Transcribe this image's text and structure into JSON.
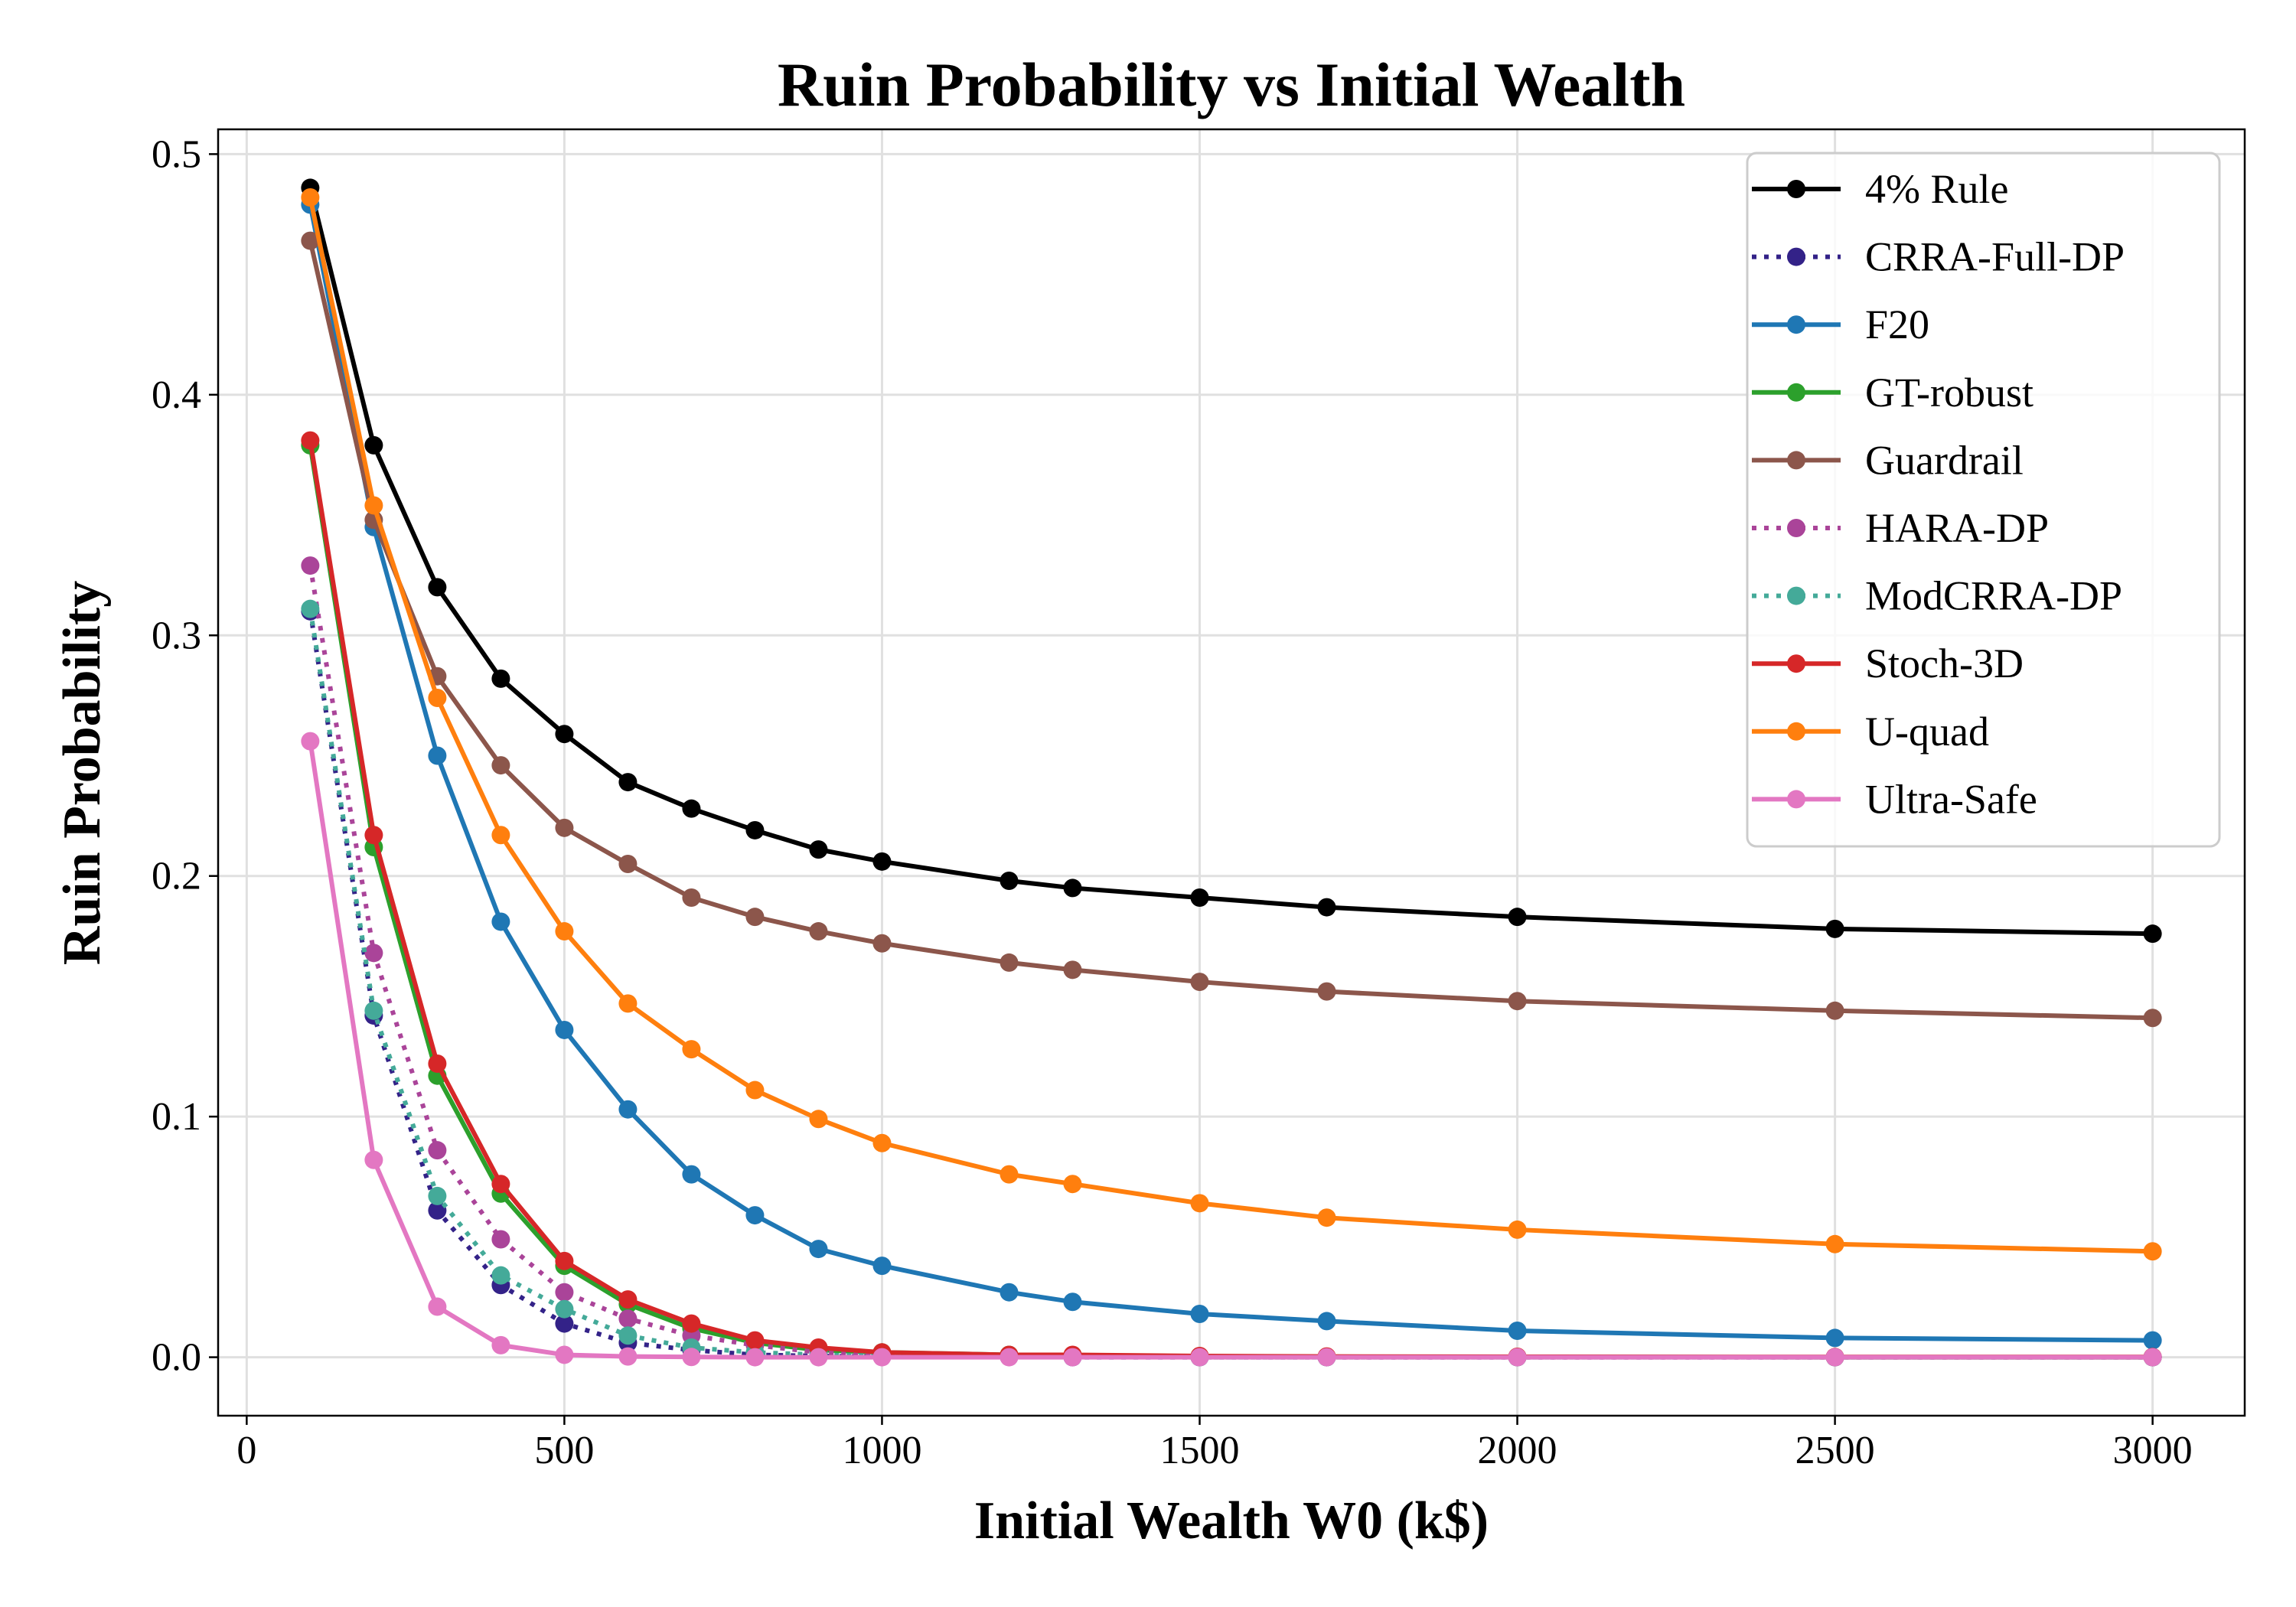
{
  "chart_data": {
    "type": "line",
    "title": "Ruin Probability vs Initial Wealth",
    "xlabel": "Initial Wealth W0 (k$)",
    "ylabel": "Ruin Probability",
    "xlim": [
      -45,
      3145
    ],
    "ylim": [
      -0.0243,
      0.5103
    ],
    "xticks": [
      0,
      500,
      1000,
      1500,
      2000,
      2500,
      3000
    ],
    "yticks": [
      0.0,
      0.1,
      0.2,
      0.3,
      0.4,
      0.5
    ],
    "xtick_labels": [
      "0",
      "500",
      "1000",
      "1500",
      "2000",
      "2500",
      "3000"
    ],
    "ytick_labels": [
      "0.0",
      "0.1",
      "0.2",
      "0.3",
      "0.4",
      "0.5"
    ],
    "grid": true,
    "legend_position": "top-right",
    "x": [
      100,
      200,
      300,
      400,
      500,
      600,
      700,
      800,
      900,
      1000,
      1200,
      1300,
      1500,
      1700,
      2000,
      2500,
      3000
    ],
    "series": [
      {
        "name": "4% Rule",
        "color": "#000000",
        "linestyle": "solid",
        "values": [
          0.486,
          0.379,
          0.32,
          0.282,
          0.259,
          0.239,
          0.228,
          0.219,
          0.211,
          0.206,
          0.198,
          0.195,
          0.191,
          0.187,
          0.183,
          0.178,
          0.176
        ]
      },
      {
        "name": "CRRA-Full-DP",
        "color": "#332288",
        "linestyle": "dotted",
        "values": [
          0.31,
          0.142,
          0.061,
          0.03,
          0.014,
          0.006,
          0.003,
          0.001,
          0.0005,
          0.0002,
          0.0001,
          0.0,
          0.0,
          0.0,
          0.0,
          0.0,
          0.0
        ]
      },
      {
        "name": "F20",
        "color": "#1f77b4",
        "linestyle": "solid",
        "values": [
          0.479,
          0.345,
          0.25,
          0.181,
          0.136,
          0.103,
          0.076,
          0.059,
          0.045,
          0.038,
          0.027,
          0.023,
          0.018,
          0.015,
          0.011,
          0.008,
          0.007
        ]
      },
      {
        "name": "GT-robust",
        "color": "#2ca02c",
        "linestyle": "solid",
        "values": [
          0.379,
          0.212,
          0.117,
          0.068,
          0.038,
          0.022,
          0.012,
          0.006,
          0.003,
          0.002,
          0.001,
          0.0008,
          0.0004,
          0.0002,
          0.0001,
          0.0,
          0.0
        ]
      },
      {
        "name": "Guardrail",
        "color": "#8c564b",
        "linestyle": "solid",
        "values": [
          0.464,
          0.348,
          0.283,
          0.246,
          0.22,
          0.205,
          0.191,
          0.183,
          0.177,
          0.172,
          0.164,
          0.161,
          0.156,
          0.152,
          0.148,
          0.144,
          0.141
        ]
      },
      {
        "name": "HARA-DP",
        "color": "#aa4499",
        "linestyle": "dotted",
        "values": [
          0.329,
          0.168,
          0.086,
          0.049,
          0.027,
          0.016,
          0.009,
          0.005,
          0.002,
          0.001,
          0.0005,
          0.0003,
          0.0001,
          0.0,
          0.0,
          0.0,
          0.0
        ]
      },
      {
        "name": "ModCRRA-DP",
        "color": "#44aa99",
        "linestyle": "dotted",
        "values": [
          0.311,
          0.144,
          0.067,
          0.034,
          0.02,
          0.009,
          0.004,
          0.002,
          0.001,
          0.0005,
          0.0002,
          0.0001,
          0.0,
          0.0,
          0.0,
          0.0,
          0.0
        ]
      },
      {
        "name": "Stoch-3D",
        "color": "#d62728",
        "linestyle": "solid",
        "values": [
          0.381,
          0.217,
          0.122,
          0.072,
          0.04,
          0.024,
          0.014,
          0.007,
          0.004,
          0.002,
          0.001,
          0.001,
          0.0005,
          0.0003,
          0.0002,
          0.0001,
          0.0001
        ]
      },
      {
        "name": "U-quad",
        "color": "#ff7f0e",
        "linestyle": "solid",
        "values": [
          0.482,
          0.354,
          0.274,
          0.217,
          0.177,
          0.147,
          0.128,
          0.111,
          0.099,
          0.089,
          0.076,
          0.072,
          0.064,
          0.058,
          0.053,
          0.047,
          0.044
        ]
      },
      {
        "name": "Ultra-Safe",
        "color": "#e377c2",
        "linestyle": "solid",
        "values": [
          0.256,
          0.082,
          0.021,
          0.005,
          0.001,
          0.0003,
          0.0001,
          0.0,
          0.0,
          0.0,
          0.0,
          0.0,
          0.0,
          0.0,
          0.0,
          0.0,
          0.0
        ]
      }
    ]
  }
}
